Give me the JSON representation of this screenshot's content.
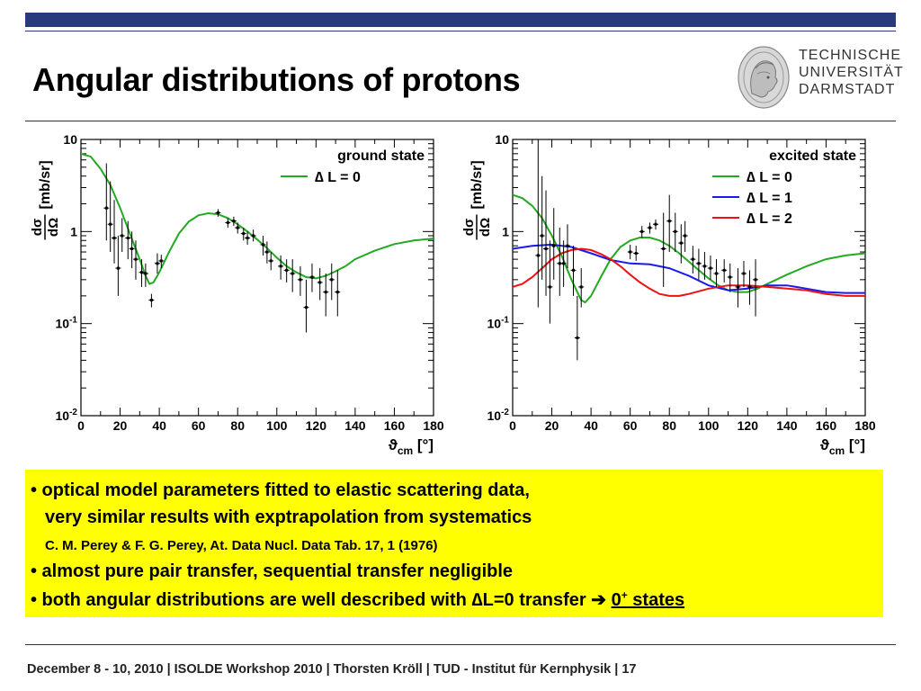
{
  "slide": {
    "title": "Angular distributions of protons",
    "logo_lines": [
      "TECHNISCHE",
      "UNIVERSITÄT",
      "DARMSTADT"
    ],
    "bullets": {
      "b1_line1": "• optical model parameters fitted to elastic scattering data,",
      "b1_line2": "very similar results with exptrapolation from systematics",
      "b1_ref": "C. M. Perey & F. G. Perey, At. Data Nucl. Data Tab. 17, 1 (1976)",
      "b2": "• almost pure pair transfer, sequential transfer negligible",
      "b3_pre": "• both angular distributions are well described with ",
      "b3_delta": "∆",
      "b3_mid": "L=0 transfer ",
      "b3_arrow": "➔",
      "b3_state": "0",
      "b3_sup": "+",
      "b3_post": " states"
    },
    "footer": "December 8 - 10, 2010  |  ISOLDE Workshop 2010  | Thorsten Kröll | TUD - Institut für Kernphysik  |  17",
    "colors": {
      "bar": "#283a7c",
      "box": "#ffff00",
      "dl0": "#22aa22",
      "dl1": "#1a1aee",
      "dl2": "#ee1111"
    }
  },
  "chart_data": [
    {
      "type": "scatter",
      "log_y": true,
      "xlim": [
        0,
        180
      ],
      "ylim": [
        0.01,
        10
      ],
      "x_ticks": [
        "0",
        "20",
        "40",
        "60",
        "80",
        "100",
        "120",
        "140",
        "160",
        "180"
      ],
      "y_ticks": [
        {
          "base": "10",
          "exp": ""
        },
        {
          "base": "1",
          "exp": ""
        },
        {
          "base": "10",
          "exp": "-1"
        },
        {
          "base": "10",
          "exp": "-2"
        }
      ],
      "xlabel": "ϑ",
      "xlabel_sub": "cm",
      "xlabel_unit": " [°]",
      "ylabel_num": "dσ",
      "ylabel_den": "dΩ",
      "ylabel_unit": "[mb/sr]",
      "legend_title": "ground state",
      "legend_placement": "top-right",
      "series": [
        {
          "name": "∆ L = 0",
          "color": "#22aa22",
          "x": [
            0,
            5,
            10,
            15,
            20,
            25,
            30,
            33,
            35,
            37,
            40,
            45,
            50,
            55,
            60,
            65,
            70,
            75,
            80,
            85,
            90,
            95,
            100,
            105,
            110,
            115,
            120,
            125,
            130,
            135,
            140,
            150,
            160,
            170,
            180
          ],
          "y": [
            7,
            6.5,
            4.8,
            3.2,
            1.8,
            0.95,
            0.5,
            0.33,
            0.27,
            0.28,
            0.36,
            0.6,
            0.95,
            1.28,
            1.5,
            1.58,
            1.54,
            1.4,
            1.2,
            1,
            0.82,
            0.66,
            0.52,
            0.42,
            0.36,
            0.32,
            0.31,
            0.33,
            0.37,
            0.42,
            0.5,
            0.62,
            0.73,
            0.8,
            0.84
          ]
        }
      ],
      "points": [
        {
          "x": 13,
          "y": 1.8,
          "lo": 0.8,
          "hi": 5.5
        },
        {
          "x": 15,
          "y": 1.2,
          "lo": 0.6,
          "hi": 3.5
        },
        {
          "x": 17,
          "y": 0.85,
          "lo": 0.45,
          "hi": 2.2
        },
        {
          "x": 19,
          "y": 0.4,
          "lo": 0.2,
          "hi": 0.9
        },
        {
          "x": 21,
          "y": 0.9,
          "lo": 0.6,
          "hi": 1.4
        },
        {
          "x": 24,
          "y": 0.85,
          "lo": 0.5,
          "hi": 1.3
        },
        {
          "x": 26,
          "y": 0.65,
          "lo": 0.4,
          "hi": 1.0
        },
        {
          "x": 28,
          "y": 0.5,
          "lo": 0.3,
          "hi": 0.8
        },
        {
          "x": 31,
          "y": 0.36,
          "lo": 0.25,
          "hi": 0.5
        },
        {
          "x": 33,
          "y": 0.35,
          "lo": 0.25,
          "hi": 0.45
        },
        {
          "x": 36,
          "y": 0.18,
          "lo": 0.15,
          "hi": 0.21
        },
        {
          "x": 39,
          "y": 0.45,
          "lo": 0.35,
          "hi": 0.58
        },
        {
          "x": 41,
          "y": 0.48,
          "lo": 0.4,
          "hi": 0.56
        },
        {
          "x": 70,
          "y": 1.6,
          "lo": 1.45,
          "hi": 1.75
        },
        {
          "x": 75,
          "y": 1.25,
          "lo": 1.1,
          "hi": 1.4
        },
        {
          "x": 78,
          "y": 1.3,
          "lo": 1.15,
          "hi": 1.45
        },
        {
          "x": 80,
          "y": 1.1,
          "lo": 0.95,
          "hi": 1.25
        },
        {
          "x": 83,
          "y": 0.95,
          "lo": 0.8,
          "hi": 1.1
        },
        {
          "x": 85,
          "y": 0.85,
          "lo": 0.72,
          "hi": 1.0
        },
        {
          "x": 88,
          "y": 0.9,
          "lo": 0.78,
          "hi": 1.05
        },
        {
          "x": 93,
          "y": 0.72,
          "lo": 0.55,
          "hi": 0.9
        },
        {
          "x": 95,
          "y": 0.6,
          "lo": 0.45,
          "hi": 0.78
        },
        {
          "x": 97,
          "y": 0.48,
          "lo": 0.38,
          "hi": 0.6
        },
        {
          "x": 102,
          "y": 0.42,
          "lo": 0.3,
          "hi": 0.55
        },
        {
          "x": 105,
          "y": 0.38,
          "lo": 0.28,
          "hi": 0.5
        },
        {
          "x": 108,
          "y": 0.35,
          "lo": 0.22,
          "hi": 0.5
        },
        {
          "x": 112,
          "y": 0.3,
          "lo": 0.2,
          "hi": 0.42
        },
        {
          "x": 115,
          "y": 0.15,
          "lo": 0.08,
          "hi": 0.3
        },
        {
          "x": 118,
          "y": 0.32,
          "lo": 0.22,
          "hi": 0.45
        },
        {
          "x": 122,
          "y": 0.28,
          "lo": 0.18,
          "hi": 0.4
        },
        {
          "x": 125,
          "y": 0.22,
          "lo": 0.12,
          "hi": 0.35
        },
        {
          "x": 128,
          "y": 0.3,
          "lo": 0.18,
          "hi": 0.45
        },
        {
          "x": 131,
          "y": 0.22,
          "lo": 0.12,
          "hi": 0.38
        }
      ]
    },
    {
      "type": "scatter",
      "log_y": true,
      "xlim": [
        0,
        180
      ],
      "ylim": [
        0.01,
        10
      ],
      "x_ticks": [
        "0",
        "20",
        "40",
        "60",
        "80",
        "100",
        "120",
        "140",
        "160",
        "180"
      ],
      "y_ticks": [
        {
          "base": "10",
          "exp": ""
        },
        {
          "base": "1",
          "exp": ""
        },
        {
          "base": "10",
          "exp": "-1"
        },
        {
          "base": "10",
          "exp": "-2"
        }
      ],
      "xlabel": "ϑ",
      "xlabel_sub": "cm",
      "xlabel_unit": " [°]",
      "ylabel_num": "dσ",
      "ylabel_den": "dΩ",
      "ylabel_unit": "[mb/sr]",
      "legend_title": "excited state",
      "legend_placement": "top-right",
      "series": [
        {
          "name": "∆ L = 0",
          "color": "#22aa22",
          "x": [
            0,
            5,
            10,
            15,
            20,
            25,
            30,
            35,
            37,
            40,
            45,
            50,
            55,
            60,
            65,
            70,
            75,
            80,
            85,
            90,
            95,
            100,
            105,
            110,
            115,
            120,
            125,
            130,
            140,
            150,
            160,
            170,
            180
          ],
          "y": [
            2.5,
            2.3,
            1.9,
            1.4,
            0.9,
            0.55,
            0.3,
            0.18,
            0.17,
            0.2,
            0.32,
            0.5,
            0.68,
            0.8,
            0.86,
            0.86,
            0.8,
            0.7,
            0.58,
            0.47,
            0.38,
            0.31,
            0.26,
            0.23,
            0.22,
            0.22,
            0.24,
            0.27,
            0.34,
            0.42,
            0.5,
            0.55,
            0.58
          ]
        },
        {
          "name": "∆ L = 1",
          "color": "#1a1aee",
          "x": [
            0,
            10,
            20,
            30,
            40,
            50,
            60,
            70,
            80,
            90,
            100,
            110,
            120,
            130,
            140,
            150,
            160,
            170,
            180
          ],
          "y": [
            0.65,
            0.7,
            0.72,
            0.68,
            0.58,
            0.49,
            0.45,
            0.44,
            0.4,
            0.33,
            0.26,
            0.23,
            0.24,
            0.26,
            0.26,
            0.24,
            0.22,
            0.215,
            0.215
          ]
        },
        {
          "name": "∆ L = 2",
          "color": "#ee1111",
          "x": [
            0,
            5,
            10,
            15,
            20,
            25,
            30,
            35,
            40,
            45,
            50,
            55,
            60,
            65,
            70,
            75,
            80,
            85,
            90,
            100,
            110,
            120,
            130,
            140,
            150,
            160,
            170,
            180
          ],
          "y": [
            0.25,
            0.27,
            0.32,
            0.4,
            0.5,
            0.58,
            0.63,
            0.65,
            0.63,
            0.57,
            0.5,
            0.42,
            0.34,
            0.28,
            0.24,
            0.21,
            0.2,
            0.2,
            0.21,
            0.24,
            0.26,
            0.26,
            0.25,
            0.24,
            0.23,
            0.21,
            0.2,
            0.2
          ]
        }
      ],
      "points": [
        {
          "x": 13,
          "y": 0.55,
          "lo": 0.15,
          "hi": 10
        },
        {
          "x": 15,
          "y": 0.9,
          "lo": 0.3,
          "hi": 4
        },
        {
          "x": 17,
          "y": 0.65,
          "lo": 0.2,
          "hi": 2.8
        },
        {
          "x": 19,
          "y": 0.25,
          "lo": 0.1,
          "hi": 0.8
        },
        {
          "x": 21,
          "y": 0.7,
          "lo": 0.3,
          "hi": 1.8
        },
        {
          "x": 24,
          "y": 0.45,
          "lo": 0.2,
          "hi": 1.1
        },
        {
          "x": 26,
          "y": 0.45,
          "lo": 0.25,
          "hi": 0.8
        },
        {
          "x": 28,
          "y": 0.7,
          "lo": 0.4,
          "hi": 1.2
        },
        {
          "x": 31,
          "y": 0.38,
          "lo": 0.2,
          "hi": 0.7
        },
        {
          "x": 33,
          "y": 0.07,
          "lo": 0.04,
          "hi": 0.2
        },
        {
          "x": 35,
          "y": 0.25,
          "lo": 0.15,
          "hi": 0.4
        },
        {
          "x": 60,
          "y": 0.6,
          "lo": 0.5,
          "hi": 0.72
        },
        {
          "x": 63,
          "y": 0.58,
          "lo": 0.48,
          "hi": 0.7
        },
        {
          "x": 66,
          "y": 1.0,
          "lo": 0.85,
          "hi": 1.15
        },
        {
          "x": 70,
          "y": 1.1,
          "lo": 0.95,
          "hi": 1.25
        },
        {
          "x": 73,
          "y": 1.2,
          "lo": 1.05,
          "hi": 1.35
        },
        {
          "x": 77,
          "y": 0.65,
          "lo": 0.25,
          "hi": 1.6
        },
        {
          "x": 80,
          "y": 1.3,
          "lo": 0.6,
          "hi": 2.5
        },
        {
          "x": 83,
          "y": 1.0,
          "lo": 0.6,
          "hi": 1.6
        },
        {
          "x": 86,
          "y": 0.75,
          "lo": 0.45,
          "hi": 1.2
        },
        {
          "x": 88,
          "y": 0.9,
          "lo": 0.6,
          "hi": 1.3
        },
        {
          "x": 92,
          "y": 0.5,
          "lo": 0.35,
          "hi": 0.7
        },
        {
          "x": 95,
          "y": 0.45,
          "lo": 0.3,
          "hi": 0.65
        },
        {
          "x": 98,
          "y": 0.42,
          "lo": 0.3,
          "hi": 0.6
        },
        {
          "x": 101,
          "y": 0.4,
          "lo": 0.3,
          "hi": 0.55
        },
        {
          "x": 104,
          "y": 0.35,
          "lo": 0.25,
          "hi": 0.5
        },
        {
          "x": 108,
          "y": 0.38,
          "lo": 0.28,
          "hi": 0.5
        },
        {
          "x": 111,
          "y": 0.32,
          "lo": 0.22,
          "hi": 0.45
        },
        {
          "x": 115,
          "y": 0.25,
          "lo": 0.15,
          "hi": 0.4
        },
        {
          "x": 118,
          "y": 0.35,
          "lo": 0.25,
          "hi": 0.48
        },
        {
          "x": 121,
          "y": 0.25,
          "lo": 0.16,
          "hi": 0.38
        },
        {
          "x": 124,
          "y": 0.3,
          "lo": 0.12,
          "hi": 0.5
        }
      ]
    }
  ]
}
